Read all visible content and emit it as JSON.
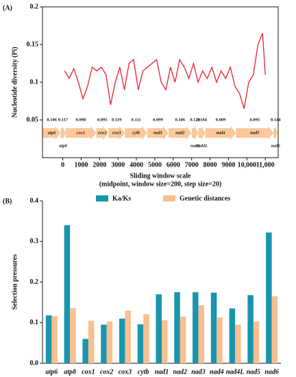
{
  "chart_data": [
    {
      "type": "line",
      "panel_label": "(A)",
      "y_label": "Nucleotide diversity (Pi)",
      "x_label": "Sliding window scale",
      "x_sublabel": "(midpoint, window size=200, step size=20)",
      "xlim": [
        -1100,
        11700
      ],
      "xticks": [
        0,
        1000,
        2000,
        3000,
        4000,
        5000,
        6000,
        7000,
        8000,
        9000,
        {
          "value": 10000,
          "label": "10,000"
        },
        {
          "value": 11000,
          "label": "11,000"
        }
      ],
      "ylim": [
        0,
        0.2
      ],
      "yticks": [
        0.05,
        0.1,
        0.15,
        0.2
      ],
      "series": [
        {
          "color": "#e8202a",
          "x": [
            100,
            350,
            600,
            850,
            1100,
            1350,
            1600,
            1850,
            2100,
            2350,
            2600,
            2850,
            3100,
            3350,
            3600,
            3850,
            4100,
            4350,
            4600,
            4850,
            5100,
            5350,
            5600,
            5850,
            6100,
            6350,
            6600,
            6850,
            7100,
            7350,
            7600,
            7850,
            8100,
            8350,
            8600,
            8850,
            9100,
            9350,
            9600,
            9850,
            10100,
            10350,
            10600,
            10850,
            11000
          ],
          "values": [
            0.115,
            0.105,
            0.118,
            0.1,
            0.078,
            0.095,
            0.12,
            0.115,
            0.12,
            0.11,
            0.07,
            0.1,
            0.12,
            0.09,
            0.125,
            0.13,
            0.09,
            0.115,
            0.12,
            0.125,
            0.13,
            0.1,
            0.09,
            0.12,
            0.1,
            0.13,
            0.12,
            0.105,
            0.125,
            0.1,
            0.115,
            0.105,
            0.12,
            0.1,
            0.115,
            0.105,
            0.12,
            0.095,
            0.085,
            0.065,
            0.1,
            0.11,
            0.15,
            0.165,
            0.11
          ]
        }
      ],
      "gene_color": "#f9c89b",
      "genes": [
        {
          "name": "atp6",
          "value": 0.106,
          "start": -1074,
          "end": -111,
          "label_below": false
        },
        {
          "name": "atp8",
          "value": 0.117,
          "start": -111,
          "end": 148,
          "label_below": true
        },
        {
          "name": "cox1",
          "value": 0.098,
          "start": 148,
          "end": 1815,
          "label_below": false
        },
        {
          "name": "cox2",
          "value": 0.095,
          "start": 1815,
          "end": 2481,
          "label_below": false
        },
        {
          "name": "cox3",
          "value": 0.119,
          "start": 2481,
          "end": 3370,
          "label_below": false
        },
        {
          "name": "cytb",
          "value": 0.111,
          "start": 3370,
          "end": 4593,
          "label_below": false
        },
        {
          "name": "nad1",
          "value": 0.099,
          "start": 4593,
          "end": 5741,
          "label_below": false
        },
        {
          "name": "nad2",
          "value": 0.106,
          "start": 5741,
          "end": 7000,
          "label_below": false
        },
        {
          "name": "nad3",
          "value": 0.129,
          "start": 7000,
          "end": 7370,
          "label_below": true
        },
        {
          "name": "nad4L",
          "value": 0.104,
          "start": 7370,
          "end": 7741,
          "label_below": true
        },
        {
          "name": "nad4",
          "value": 0.089,
          "start": 7741,
          "end": 9408,
          "label_below": false
        },
        {
          "name": "nad5",
          "value": 0.095,
          "start": 9408,
          "end": 11445,
          "label_below": false
        },
        {
          "name": "nad6",
          "value": 0.144,
          "start": 11445,
          "end": 11667,
          "label_below": true
        }
      ]
    },
    {
      "type": "bar",
      "panel_label": "(B)",
      "y_label": "Selection pressures",
      "categories": [
        "atp6",
        "atp8",
        "cox1",
        "cox2",
        "cox3",
        "cytb",
        "nad1",
        "nad2",
        "nad3",
        "nad4",
        "nad4L",
        "nad5",
        "nad6"
      ],
      "ylim": [
        0,
        0.4
      ],
      "yticks": [
        {
          "value": 0,
          "label": "0.0"
        },
        0.1,
        0.2,
        0.3,
        0.4
      ],
      "legend": "top",
      "series": [
        {
          "name": "Ka/Ks",
          "color": "#1995ad",
          "values": [
            0.118,
            0.34,
            0.06,
            0.095,
            0.11,
            0.096,
            0.17,
            0.175,
            0.175,
            0.174,
            0.135,
            0.168,
            0.322
          ]
        },
        {
          "name": "Genetic distances",
          "color": "#f9bf8f",
          "values": [
            0.116,
            0.136,
            0.105,
            0.103,
            0.13,
            0.121,
            0.106,
            0.115,
            0.143,
            0.113,
            0.095,
            0.103,
            0.165
          ]
        }
      ]
    }
  ]
}
